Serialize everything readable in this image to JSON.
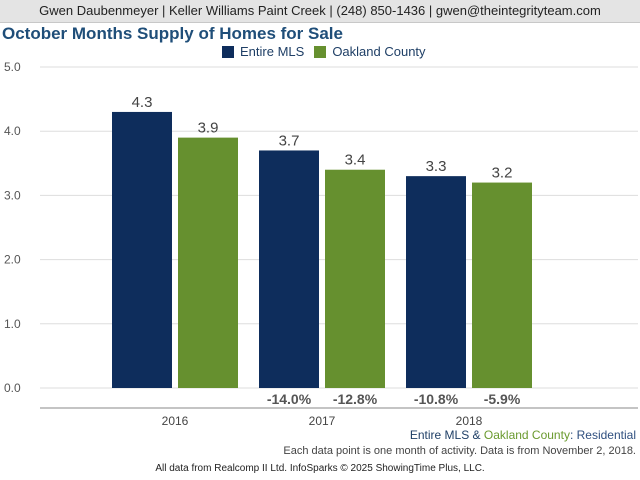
{
  "header": {
    "contact": "Gwen Daubenmeyer | Keller Williams Paint Creek | (248) 850-1436 | gwen@theintegrityteam.com"
  },
  "chart_data": {
    "type": "bar",
    "title": "October Months Supply of Homes for Sale",
    "categories": [
      "2016",
      "2017",
      "2018"
    ],
    "series": [
      {
        "name": "Entire MLS",
        "color": "#0e2d5c",
        "values": [
          4.3,
          3.7,
          3.3
        ],
        "changes": [
          "",
          "-14.0%",
          "-10.8%"
        ]
      },
      {
        "name": "Oakland County",
        "color": "#66902f",
        "values": [
          3.9,
          3.4,
          3.2
        ],
        "changes": [
          "",
          "-12.8%",
          "-5.9%"
        ]
      }
    ],
    "yticks": [
      "5.0",
      "4.0",
      "3.0",
      "2.0",
      "1.0",
      "0.0"
    ],
    "ylim": [
      0,
      5
    ],
    "grid": true,
    "legend": "top-center"
  },
  "footer": {
    "filter_mls": "Entire MLS",
    "filter_and": " & ",
    "filter_county": "Oakland County",
    "filter_suffix": ": Residential",
    "note": "Each data point is one month of activity. Data is from November 2, 2018.",
    "credit": "All data from Realcomp II Ltd. InfoSparks © 2025 ShowingTime Plus, LLC."
  }
}
